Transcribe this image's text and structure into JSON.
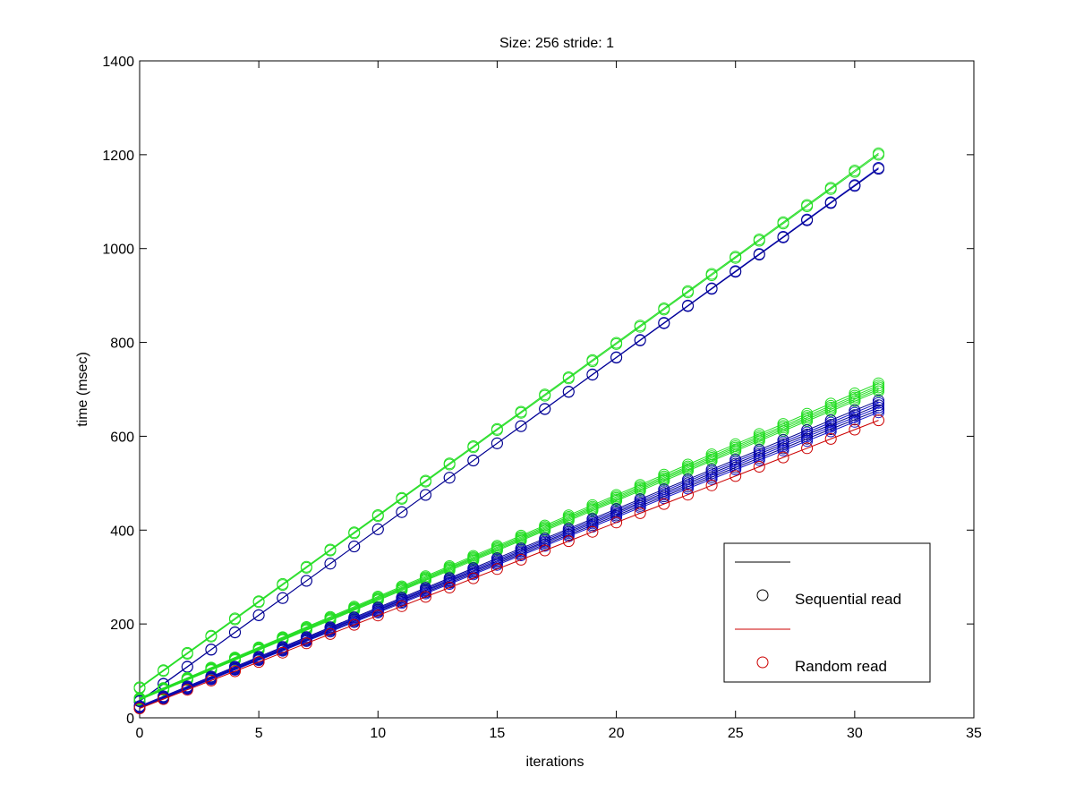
{
  "chart_data": {
    "type": "line",
    "title": "Size: 256 stride: 1",
    "xlabel": "iterations",
    "ylabel": "time (msec)",
    "xlim": [
      0,
      35
    ],
    "ylim": [
      0,
      1400
    ],
    "xticks": [
      "0",
      "5",
      "10",
      "15",
      "20",
      "25",
      "30",
      "35"
    ],
    "yticks": [
      "0",
      "200",
      "400",
      "600",
      "800",
      "1000",
      "1200",
      "1400"
    ],
    "grid": false,
    "legend_position": "bottom-right",
    "legend": [
      {
        "label": "",
        "line_color": "#000000",
        "marker": "none"
      },
      {
        "label": "Sequential read",
        "line_color": "none",
        "marker": "circle",
        "marker_color": "#000000"
      },
      {
        "label": "",
        "line_color": "#cc0000",
        "marker": "none"
      },
      {
        "label": "Random read",
        "line_color": "none",
        "marker": "circle",
        "marker_color": "#cc0000"
      }
    ],
    "x": [
      0,
      1,
      2,
      3,
      4,
      5,
      6,
      7,
      8,
      9,
      10,
      11,
      12,
      13,
      14,
      15,
      16,
      17,
      18,
      19,
      20,
      21,
      22,
      23,
      24,
      25,
      26,
      27,
      28,
      29,
      30,
      31
    ],
    "series": [
      {
        "color": "#22dd22",
        "start": 65,
        "end": 1203
      },
      {
        "color": "#22dd22",
        "start": 63,
        "end": 1200
      },
      {
        "color": "#1111cc",
        "start": 35,
        "end": 1172
      },
      {
        "color": "#000088",
        "start": 36,
        "end": 1170
      },
      {
        "color": "#22dd22",
        "start": 42,
        "end": 713
      },
      {
        "color": "#22dd22",
        "start": 41,
        "end": 708
      },
      {
        "color": "#22dd22",
        "start": 40,
        "end": 704
      },
      {
        "color": "#22dd22",
        "start": 39,
        "end": 700
      },
      {
        "color": "#22dd22",
        "start": 38,
        "end": 696
      },
      {
        "color": "#000088",
        "start": 25,
        "end": 676
      },
      {
        "color": "#1111cc",
        "start": 24,
        "end": 671
      },
      {
        "color": "#000088",
        "start": 23,
        "end": 666
      },
      {
        "color": "#1111cc",
        "start": 23,
        "end": 661
      },
      {
        "color": "#000088",
        "start": 22,
        "end": 656
      },
      {
        "color": "#1111cc",
        "start": 21,
        "end": 651
      },
      {
        "color": "#cc0000",
        "start": 20,
        "end": 634
      }
    ]
  }
}
